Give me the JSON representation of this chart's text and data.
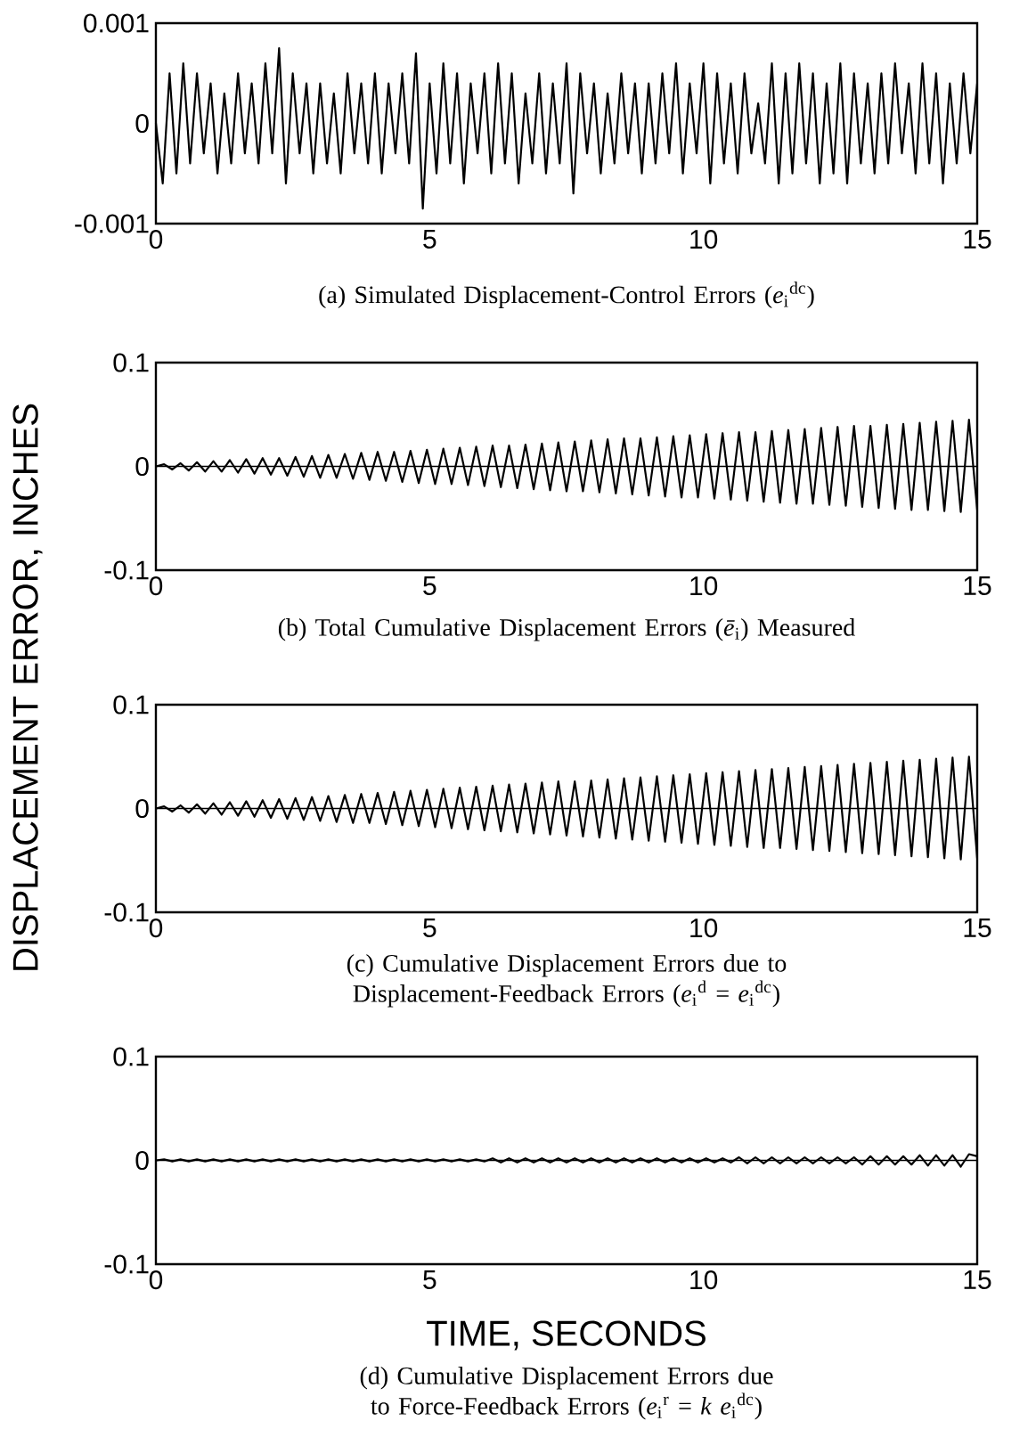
{
  "chart_data": [
    {
      "type": "line",
      "title": "(a) Simulated Displacement-Control Errors (*e*$_{i}$$^{dc}$)",
      "color": "#000000",
      "xlim": [
        0,
        15
      ],
      "ylim": [
        -0.001,
        0.001
      ],
      "xticks": [
        0,
        5,
        10,
        15
      ],
      "yticks": [
        -0.001,
        0,
        0.001
      ],
      "x": [
        0,
        0.125,
        0.25,
        0.375,
        0.5,
        0.625,
        0.75,
        0.875,
        1,
        1.125,
        1.25,
        1.375,
        1.5,
        1.625,
        1.75,
        1.875,
        2,
        2.125,
        2.25,
        2.375,
        2.5,
        2.625,
        2.75,
        2.875,
        3,
        3.125,
        3.25,
        3.375,
        3.5,
        3.625,
        3.75,
        3.875,
        4,
        4.125,
        4.25,
        4.375,
        4.5,
        4.625,
        4.75,
        4.875,
        5,
        5.125,
        5.25,
        5.375,
        5.5,
        5.625,
        5.75,
        5.875,
        6,
        6.125,
        6.25,
        6.375,
        6.5,
        6.625,
        6.75,
        6.875,
        7,
        7.125,
        7.25,
        7.375,
        7.5,
        7.625,
        7.75,
        7.875,
        8,
        8.125,
        8.25,
        8.375,
        8.5,
        8.625,
        8.75,
        8.875,
        9,
        9.125,
        9.25,
        9.375,
        9.5,
        9.625,
        9.75,
        9.875,
        10,
        10.125,
        10.25,
        10.375,
        10.5,
        10.625,
        10.75,
        10.875,
        11,
        11.125,
        11.25,
        11.375,
        11.5,
        11.625,
        11.75,
        11.875,
        12,
        12.125,
        12.25,
        12.375,
        12.5,
        12.625,
        12.75,
        12.875,
        13,
        13.125,
        13.25,
        13.375,
        13.5,
        13.625,
        13.75,
        13.875,
        14,
        14.125,
        14.25,
        14.375,
        14.5,
        14.625,
        14.75,
        14.875,
        15
      ],
      "values": [
        0,
        -0.0006,
        0.0005,
        -0.0005,
        0.0006,
        -0.0004,
        0.0005,
        -0.0003,
        0.0004,
        -0.0005,
        0.0003,
        -0.0004,
        0.0005,
        -0.0003,
        0.0004,
        -0.0004,
        0.0006,
        -0.0003,
        0.00075,
        -0.0006,
        0.0005,
        -0.0003,
        0.0004,
        -0.0005,
        0.0004,
        -0.0004,
        0.0003,
        -0.0005,
        0.0005,
        -0.0003,
        0.0004,
        -0.0004,
        0.0005,
        -0.0005,
        0.0004,
        -0.0003,
        0.0005,
        -0.0004,
        0.0007,
        -0.00085,
        0.0004,
        -0.0005,
        0.0006,
        -0.0004,
        0.0005,
        -0.0006,
        0.0004,
        -0.0003,
        0.0005,
        -0.0005,
        0.0006,
        -0.0004,
        0.0005,
        -0.0006,
        0.0003,
        -0.0004,
        0.0005,
        -0.0005,
        0.0004,
        -0.0004,
        0.0006,
        -0.0007,
        0.0005,
        -0.0003,
        0.0004,
        -0.0005,
        0.0003,
        -0.0004,
        0.0005,
        -0.0003,
        0.0004,
        -0.0005,
        0.0004,
        -0.0004,
        0.0005,
        -0.0003,
        0.0006,
        -0.0005,
        0.0004,
        -0.0003,
        0.0006,
        -0.0006,
        0.0005,
        -0.0004,
        0.0004,
        -0.0005,
        0.0005,
        -0.0003,
        0.0002,
        -0.0004,
        0.0006,
        -0.0006,
        0.0005,
        -0.0005,
        0.0006,
        -0.0004,
        0.0005,
        -0.0006,
        0.0004,
        -0.0005,
        0.0006,
        -0.0006,
        0.0005,
        -0.0004,
        0.0004,
        -0.0005,
        0.0005,
        -0.0004,
        0.0006,
        -0.0003,
        0.0004,
        -0.0005,
        0.0006,
        -0.0004,
        0.0005,
        -0.0006,
        0.0004,
        -0.0004,
        0.0005,
        -0.0003,
        0.0004
      ]
    },
    {
      "type": "line",
      "title": "(b) Total Cumulative Displacement Errors (*ē*$_{i}$) Measured",
      "color": "#000000",
      "xlim": [
        0,
        15
      ],
      "ylim": [
        -0.1,
        0.1
      ],
      "xticks": [
        0,
        5,
        10,
        15
      ],
      "yticks": [
        -0.1,
        0,
        0.1
      ],
      "ref_lines": [
        {
          "axis": "y",
          "value": 0
        }
      ],
      "x": [
        0,
        0.15,
        0.3,
        0.45,
        0.6,
        0.75,
        0.9,
        1.05,
        1.2,
        1.35,
        1.5,
        1.65,
        1.8,
        1.95,
        2.1,
        2.25,
        2.4,
        2.55,
        2.7,
        2.85,
        3,
        3.15,
        3.3,
        3.45,
        3.6,
        3.75,
        3.9,
        4.05,
        4.2,
        4.35,
        4.5,
        4.65,
        4.8,
        4.95,
        5.1,
        5.25,
        5.4,
        5.55,
        5.7,
        5.85,
        6,
        6.15,
        6.3,
        6.45,
        6.6,
        6.75,
        6.9,
        7.05,
        7.2,
        7.35,
        7.5,
        7.65,
        7.8,
        7.95,
        8.1,
        8.25,
        8.4,
        8.55,
        8.7,
        8.85,
        9,
        9.15,
        9.3,
        9.45,
        9.6,
        9.75,
        9.9,
        10.05,
        10.2,
        10.35,
        10.5,
        10.65,
        10.8,
        10.95,
        11.1,
        11.25,
        11.4,
        11.55,
        11.7,
        11.85,
        12,
        12.15,
        12.3,
        12.45,
        12.6,
        12.75,
        12.9,
        13.05,
        13.2,
        13.35,
        13.5,
        13.65,
        13.8,
        13.95,
        14.1,
        14.25,
        14.4,
        14.55,
        14.7,
        14.85,
        15
      ],
      "values": [
        0,
        0.002,
        -0.003,
        0.003,
        -0.004,
        0.004,
        -0.005,
        0.005,
        -0.005,
        0.006,
        -0.006,
        0.007,
        -0.007,
        0.008,
        -0.008,
        0.008,
        -0.009,
        0.009,
        -0.01,
        0.01,
        -0.011,
        0.011,
        -0.011,
        0.012,
        -0.012,
        0.013,
        -0.013,
        0.014,
        -0.014,
        0.014,
        -0.015,
        0.015,
        -0.016,
        0.016,
        -0.017,
        0.017,
        -0.017,
        0.018,
        -0.018,
        0.019,
        -0.019,
        0.02,
        -0.02,
        0.02,
        -0.021,
        0.021,
        -0.022,
        0.022,
        -0.023,
        0.023,
        -0.024,
        0.024,
        -0.024,
        0.025,
        -0.025,
        0.026,
        -0.026,
        0.027,
        -0.027,
        0.027,
        -0.028,
        0.028,
        -0.029,
        0.029,
        -0.03,
        0.03,
        -0.03,
        0.031,
        -0.031,
        0.032,
        -0.032,
        0.033,
        -0.033,
        0.033,
        -0.034,
        0.034,
        -0.035,
        0.035,
        -0.036,
        0.036,
        -0.036,
        0.037,
        -0.037,
        0.038,
        -0.038,
        0.039,
        -0.039,
        0.039,
        -0.04,
        0.04,
        -0.041,
        0.041,
        -0.042,
        0.042,
        -0.042,
        0.043,
        -0.043,
        0.044,
        -0.044,
        0.045,
        -0.042
      ]
    },
    {
      "type": "line",
      "title": "(c) Cumulative Displacement Errors due to Displacement-Feedback Errors (*e*$_{i}$$^{d}$ = *e*$_{i}$$^{dc}$)",
      "ylabel": "DISPLACEMENT ERROR, INCHES",
      "color": "#000000",
      "xlim": [
        0,
        15
      ],
      "ylim": [
        -0.1,
        0.1
      ],
      "xticks": [
        0,
        5,
        10,
        15
      ],
      "yticks": [
        -0.1,
        0,
        0.1
      ],
      "ref_lines": [
        {
          "axis": "y",
          "value": 0
        }
      ],
      "x": [
        0,
        0.15,
        0.3,
        0.45,
        0.6,
        0.75,
        0.9,
        1.05,
        1.2,
        1.35,
        1.5,
        1.65,
        1.8,
        1.95,
        2.1,
        2.25,
        2.4,
        2.55,
        2.7,
        2.85,
        3,
        3.15,
        3.3,
        3.45,
        3.6,
        3.75,
        3.9,
        4.05,
        4.2,
        4.35,
        4.5,
        4.65,
        4.8,
        4.95,
        5.1,
        5.25,
        5.4,
        5.55,
        5.7,
        5.85,
        6,
        6.15,
        6.3,
        6.45,
        6.6,
        6.75,
        6.9,
        7.05,
        7.2,
        7.35,
        7.5,
        7.65,
        7.8,
        7.95,
        8.1,
        8.25,
        8.4,
        8.55,
        8.7,
        8.85,
        9,
        9.15,
        9.3,
        9.45,
        9.6,
        9.75,
        9.9,
        10.05,
        10.2,
        10.35,
        10.5,
        10.65,
        10.8,
        10.95,
        11.1,
        11.25,
        11.4,
        11.55,
        11.7,
        11.85,
        12,
        12.15,
        12.3,
        12.45,
        12.6,
        12.75,
        12.9,
        13.05,
        13.2,
        13.35,
        13.5,
        13.65,
        13.8,
        13.95,
        14.1,
        14.25,
        14.4,
        14.55,
        14.7,
        14.85,
        15
      ],
      "values": [
        0,
        0.002,
        -0.003,
        0.003,
        -0.004,
        0.004,
        -0.005,
        0.005,
        -0.006,
        0.006,
        -0.007,
        0.007,
        -0.008,
        0.008,
        -0.009,
        0.009,
        -0.01,
        0.01,
        -0.011,
        0.011,
        -0.012,
        0.012,
        -0.013,
        0.013,
        -0.014,
        0.014,
        -0.014,
        0.015,
        -0.015,
        0.016,
        -0.016,
        0.017,
        -0.017,
        0.018,
        -0.018,
        0.019,
        -0.019,
        0.02,
        -0.02,
        0.021,
        -0.021,
        0.022,
        -0.022,
        0.023,
        -0.023,
        0.024,
        -0.024,
        0.025,
        -0.025,
        0.026,
        -0.026,
        0.026,
        -0.027,
        0.027,
        -0.028,
        0.028,
        -0.029,
        0.029,
        -0.03,
        0.03,
        -0.031,
        0.031,
        -0.032,
        0.032,
        -0.033,
        0.033,
        -0.034,
        0.034,
        -0.035,
        0.035,
        -0.036,
        0.036,
        -0.037,
        0.037,
        -0.038,
        0.038,
        -0.038,
        0.039,
        -0.039,
        0.04,
        -0.04,
        0.041,
        -0.041,
        0.042,
        -0.042,
        0.043,
        -0.043,
        0.044,
        -0.044,
        0.045,
        -0.045,
        0.046,
        -0.046,
        0.047,
        -0.047,
        0.048,
        -0.048,
        0.049,
        -0.049,
        0.05,
        -0.048
      ]
    },
    {
      "type": "line",
      "title": "(d) Cumulative Displacement Errors due to Force-Feedback Errors (*e*$_{i}$$^{r}$ = *k* *e*$_{i}$$^{dc}$)",
      "xlabel": "TIME, SECONDS",
      "color": "#000000",
      "xlim": [
        0,
        15
      ],
      "ylim": [
        -0.1,
        0.1
      ],
      "xticks": [
        0,
        5,
        10,
        15
      ],
      "yticks": [
        -0.1,
        0,
        0.1
      ],
      "ref_lines": [
        {
          "axis": "y",
          "value": 0
        }
      ],
      "x": [
        0,
        0.15,
        0.3,
        0.45,
        0.6,
        0.75,
        0.9,
        1.05,
        1.2,
        1.35,
        1.5,
        1.65,
        1.8,
        1.95,
        2.1,
        2.25,
        2.4,
        2.55,
        2.7,
        2.85,
        3,
        3.15,
        3.3,
        3.45,
        3.6,
        3.75,
        3.9,
        4.05,
        4.2,
        4.35,
        4.5,
        4.65,
        4.8,
        4.95,
        5.1,
        5.25,
        5.4,
        5.55,
        5.7,
        5.85,
        6,
        6.15,
        6.3,
        6.45,
        6.6,
        6.75,
        6.9,
        7.05,
        7.2,
        7.35,
        7.5,
        7.65,
        7.8,
        7.95,
        8.1,
        8.25,
        8.4,
        8.55,
        8.7,
        8.85,
        9,
        9.15,
        9.3,
        9.45,
        9.6,
        9.75,
        9.9,
        10.05,
        10.2,
        10.35,
        10.5,
        10.65,
        10.8,
        10.95,
        11.1,
        11.25,
        11.4,
        11.55,
        11.7,
        11.85,
        12,
        12.15,
        12.3,
        12.45,
        12.6,
        12.75,
        12.9,
        13.05,
        13.2,
        13.35,
        13.5,
        13.65,
        13.8,
        13.95,
        14.1,
        14.25,
        14.4,
        14.55,
        14.7,
        14.85,
        15
      ],
      "values": [
        0,
        0.001,
        -0.001,
        0.001,
        -0.001,
        0.001,
        -0.001,
        0.001,
        -0.001,
        0.001,
        -0.001,
        0.001,
        -0.001,
        0.001,
        -0.001,
        0.001,
        -0.001,
        0.001,
        -0.001,
        0.001,
        -0.001,
        0.001,
        -0.001,
        0.001,
        -0.001,
        0.001,
        -0.001,
        0.001,
        -0.001,
        0.001,
        -0.001,
        0.001,
        -0.001,
        0.001,
        -0.001,
        0.001,
        -0.001,
        0.001,
        -0.001,
        0.001,
        -0.001,
        0.002,
        -0.002,
        0.002,
        -0.002,
        0.002,
        -0.002,
        0.002,
        -0.002,
        0.002,
        -0.002,
        0.002,
        -0.002,
        0.002,
        -0.002,
        0.002,
        -0.002,
        0.002,
        -0.002,
        0.002,
        -0.002,
        0.002,
        -0.002,
        0.002,
        -0.002,
        0.002,
        -0.002,
        0.002,
        -0.002,
        0.002,
        -0.002,
        0.003,
        -0.003,
        0.003,
        -0.003,
        0.003,
        -0.003,
        0.003,
        -0.003,
        0.003,
        -0.003,
        0.003,
        -0.003,
        0.003,
        -0.003,
        0.003,
        -0.004,
        0.004,
        -0.004,
        0.004,
        -0.004,
        0.004,
        -0.004,
        0.005,
        -0.005,
        0.005,
        -0.005,
        0.005,
        -0.006,
        0.006,
        0.004
      ]
    }
  ]
}
